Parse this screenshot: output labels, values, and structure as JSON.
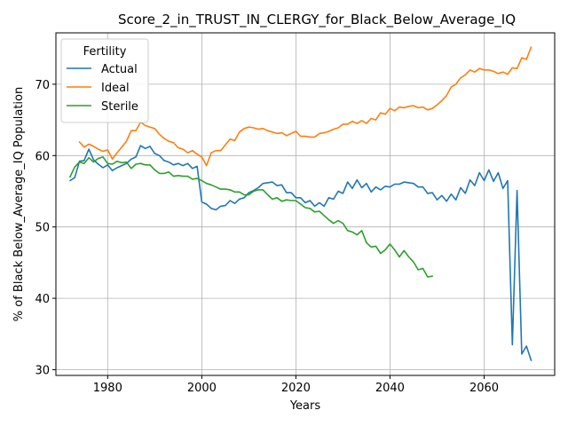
{
  "chart_data": {
    "type": "line",
    "title": "Score_2_in_TRUST_IN_CLERGY_for_Black_Below_Average_IQ",
    "xlabel": "Years",
    "ylabel": "% of Black Below_Average_IQ Population",
    "xlim": [
      1969,
      2075
    ],
    "ylim": [
      29.2,
      77.2
    ],
    "xticks": [
      1980,
      2000,
      2020,
      2040,
      2060
    ],
    "yticks": [
      30,
      40,
      50,
      60,
      70
    ],
    "grid": true,
    "legend": {
      "title": "Fertility",
      "placement": "top-left"
    },
    "series": [
      {
        "name": "Actual",
        "color": "#1f77b4",
        "x": [
          1972,
          1973,
          1974,
          1975,
          1976,
          1977,
          1978,
          1979,
          1980,
          1981,
          1982,
          1983,
          1984,
          1985,
          1986,
          1987,
          1988,
          1989,
          1990,
          1991,
          1992,
          1993,
          1994,
          1995,
          1996,
          1997,
          1998,
          1999,
          2000,
          2001,
          2002,
          2003,
          2004,
          2005,
          2006,
          2007,
          2008,
          2009,
          2010,
          2011,
          2012,
          2013,
          2014,
          2015,
          2016,
          2017,
          2018,
          2019,
          2020,
          2021,
          2022,
          2023,
          2024,
          2025,
          2026,
          2027,
          2028,
          2029,
          2030,
          2031,
          2032,
          2033,
          2034,
          2035,
          2036,
          2037,
          2038,
          2039,
          2040,
          2041,
          2042,
          2043,
          2044,
          2045,
          2046,
          2047,
          2048,
          2049,
          2050,
          2051,
          2052,
          2053,
          2054,
          2055,
          2056,
          2057,
          2058,
          2059,
          2060,
          2061,
          2062,
          2063,
          2064,
          2065,
          2066,
          2067,
          2068,
          2069,
          2070
        ],
        "y": [
          56.5,
          56.9,
          59.2,
          59.3,
          60.9,
          59.4,
          58.8,
          58.3,
          58.7,
          57.9,
          58.3,
          58.6,
          58.9,
          59.5,
          59.8,
          61.4,
          61.0,
          61.3,
          60.3,
          60.0,
          59.3,
          59.1,
          58.7,
          58.9,
          58.6,
          58.9,
          58.2,
          58.5,
          53.5,
          53.2,
          52.6,
          52.4,
          52.9,
          53.0,
          53.7,
          53.3,
          53.9,
          54.1,
          54.8,
          55.1,
          55.5,
          56.1,
          56.2,
          56.3,
          55.8,
          55.9,
          54.8,
          54.8,
          54.1,
          54.1,
          53.4,
          53.7,
          52.9,
          53.4,
          52.9,
          54.1,
          53.9,
          55.0,
          54.7,
          56.3,
          55.4,
          56.6,
          55.5,
          56.1,
          54.9,
          55.6,
          55.2,
          55.7,
          55.6,
          56.0,
          56.0,
          56.3,
          56.2,
          56.1,
          55.6,
          55.6,
          54.7,
          54.8,
          53.8,
          54.4,
          53.6,
          54.6,
          53.8,
          55.5,
          54.7,
          56.6,
          55.8,
          57.6,
          56.5,
          58.0,
          56.4,
          57.6,
          55.4,
          56.5,
          33.5,
          55.1,
          32.2,
          33.3,
          31.3
        ]
      },
      {
        "name": "Ideal",
        "color": "#ff7f0e",
        "x": [
          1974,
          1975,
          1976,
          1977,
          1978,
          1979,
          1980,
          1981,
          1982,
          1983,
          1984,
          1985,
          1986,
          1987,
          1988,
          1989,
          1990,
          1991,
          1992,
          1993,
          1994,
          1995,
          1996,
          1997,
          1998,
          1999,
          2000,
          2001,
          2002,
          2003,
          2004,
          2005,
          2006,
          2007,
          2008,
          2009,
          2010,
          2011,
          2012,
          2013,
          2014,
          2015,
          2016,
          2017,
          2018,
          2019,
          2020,
          2021,
          2022,
          2023,
          2024,
          2025,
          2026,
          2027,
          2028,
          2029,
          2030,
          2031,
          2032,
          2033,
          2034,
          2035,
          2036,
          2037,
          2038,
          2039,
          2040,
          2041,
          2042,
          2043,
          2044,
          2045,
          2046,
          2047,
          2048,
          2049,
          2050,
          2051,
          2052,
          2053,
          2054,
          2055,
          2056,
          2057,
          2058,
          2059,
          2060,
          2061,
          2062,
          2063,
          2064,
          2065,
          2066,
          2067,
          2068,
          2069,
          2070
        ],
        "y": [
          61.9,
          61.2,
          61.6,
          61.3,
          60.9,
          60.6,
          60.8,
          59.5,
          60.4,
          61.2,
          62.0,
          63.5,
          63.5,
          64.7,
          64.2,
          64.0,
          63.8,
          63.0,
          62.4,
          62.0,
          61.8,
          61.1,
          60.9,
          60.4,
          60.7,
          60.2,
          59.8,
          58.6,
          60.4,
          60.7,
          60.7,
          61.5,
          62.3,
          62.1,
          63.3,
          63.8,
          64.0,
          63.9,
          63.7,
          63.8,
          63.5,
          63.3,
          63.1,
          63.2,
          62.8,
          63.1,
          63.4,
          62.7,
          62.7,
          62.6,
          62.6,
          63.1,
          63.2,
          63.4,
          63.7,
          63.9,
          64.4,
          64.4,
          64.8,
          64.5,
          64.9,
          64.5,
          65.2,
          65.0,
          66.0,
          65.8,
          66.6,
          66.3,
          66.8,
          66.7,
          66.9,
          67.0,
          66.7,
          66.8,
          66.4,
          66.6,
          67.1,
          67.7,
          68.4,
          69.6,
          70.0,
          70.9,
          71.3,
          72.0,
          71.7,
          72.2,
          72.0,
          72.0,
          71.8,
          71.5,
          71.7,
          71.4,
          72.3,
          72.2,
          73.7,
          73.5,
          75.2
        ]
      },
      {
        "name": "Sterile",
        "color": "#2ca02c",
        "x": [
          1972,
          1973,
          1974,
          1975,
          1976,
          1977,
          1978,
          1979,
          1980,
          1981,
          1982,
          1983,
          1984,
          1985,
          1986,
          1987,
          1988,
          1989,
          1990,
          1991,
          1992,
          1993,
          1994,
          1995,
          1996,
          1997,
          1998,
          1999,
          2000,
          2001,
          2002,
          2003,
          2004,
          2005,
          2006,
          2007,
          2008,
          2009,
          2010,
          2011,
          2012,
          2013,
          2014,
          2015,
          2016,
          2017,
          2018,
          2019,
          2020,
          2021,
          2022,
          2023,
          2024,
          2025,
          2026,
          2027,
          2028,
          2029,
          2030,
          2031,
          2032,
          2033,
          2034,
          2035,
          2036,
          2037,
          2038,
          2039,
          2040,
          2041,
          2042,
          2043,
          2044,
          2045,
          2046,
          2047,
          2048,
          2049
        ],
        "y": [
          57.0,
          58.4,
          59.1,
          58.9,
          59.7,
          59.1,
          59.6,
          59.8,
          58.9,
          58.8,
          59.2,
          59.0,
          59.1,
          58.2,
          58.8,
          58.9,
          58.7,
          58.7,
          58.0,
          57.5,
          57.5,
          57.7,
          57.1,
          57.2,
          57.1,
          57.1,
          56.7,
          56.8,
          56.5,
          56.1,
          55.9,
          55.6,
          55.3,
          55.3,
          55.2,
          54.9,
          54.9,
          54.5,
          54.5,
          55.0,
          55.2,
          55.2,
          54.5,
          53.9,
          54.1,
          53.6,
          53.8,
          53.7,
          53.7,
          53.2,
          52.7,
          52.6,
          52.1,
          52.2,
          51.6,
          51.0,
          50.5,
          50.9,
          50.5,
          49.5,
          49.3,
          48.9,
          49.5,
          47.8,
          47.2,
          47.3,
          46.3,
          46.8,
          47.6,
          46.8,
          45.8,
          46.7,
          45.8,
          45.1,
          44.0,
          44.2,
          43.0,
          43.1
        ]
      }
    ]
  }
}
